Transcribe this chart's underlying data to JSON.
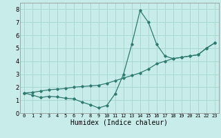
{
  "xlabel": "Humidex (Indice chaleur)",
  "ylabel": "",
  "bg_color": "#c8ecea",
  "grid_color": "#a8d8d4",
  "line_color": "#2d7a70",
  "x_values": [
    0,
    1,
    2,
    3,
    4,
    5,
    6,
    7,
    8,
    9,
    10,
    11,
    12,
    13,
    14,
    15,
    16,
    17,
    18,
    19,
    20,
    21,
    22,
    23
  ],
  "y1_values": [
    1.55,
    1.4,
    1.2,
    1.3,
    1.25,
    1.15,
    1.1,
    0.85,
    0.65,
    0.4,
    0.6,
    1.5,
    3.0,
    5.3,
    7.9,
    7.0,
    5.3,
    4.4,
    4.2,
    4.3,
    4.4,
    4.5,
    5.0,
    5.4
  ],
  "y2_values": [
    1.55,
    1.6,
    1.7,
    1.8,
    1.85,
    1.9,
    2.0,
    2.05,
    2.1,
    2.15,
    2.3,
    2.5,
    2.7,
    2.9,
    3.1,
    3.4,
    3.8,
    4.0,
    4.2,
    4.3,
    4.4,
    4.5,
    5.0,
    5.4
  ],
  "ylim": [
    0,
    8.5
  ],
  "xlim": [
    -0.5,
    23.5
  ],
  "xlabel_fontsize": 7,
  "tick_fontsize_x": 5,
  "tick_fontsize_y": 6
}
